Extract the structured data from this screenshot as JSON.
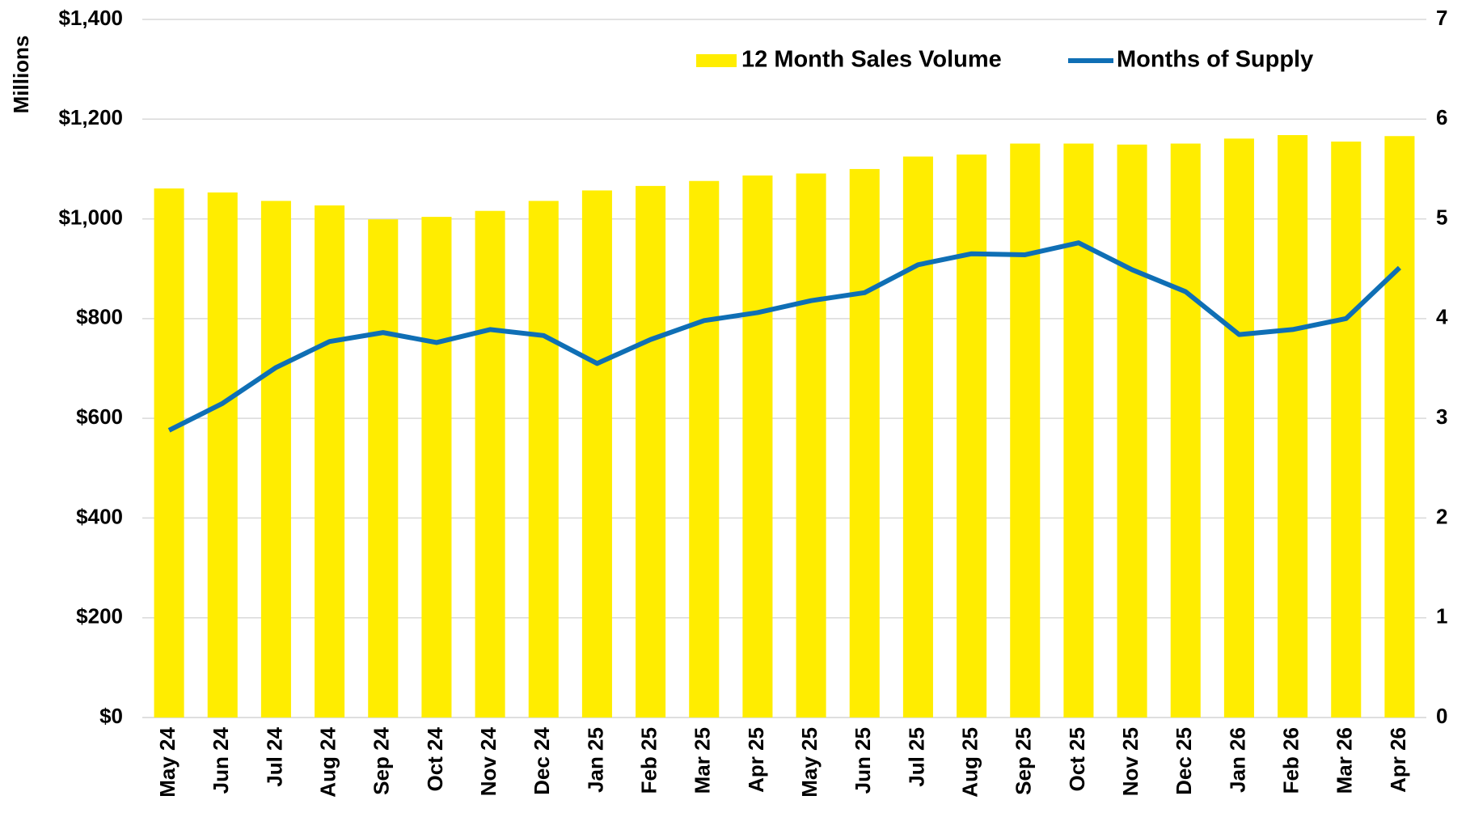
{
  "chart_data": {
    "type": "bar_line",
    "y_label": "Millions",
    "categories": [
      "May 24",
      "Jun 24",
      "Jul 24",
      "Aug 24",
      "Sep 24",
      "Oct 24",
      "Nov 24",
      "Dec 24",
      "Jan 25",
      "Feb 25",
      "Mar 25",
      "Apr 25",
      "May 25",
      "Jun 25",
      "Jul 25",
      "Aug 25",
      "Sep 25",
      "Oct 25",
      "Nov 25",
      "Dec 25",
      "Jan 26",
      "Feb 26",
      "Mar 26",
      "Apr 26"
    ],
    "series": [
      {
        "name": "12 Month Sales Volume",
        "type": "bar",
        "color": "#ffed00",
        "values": [
          1061,
          1053,
          1036,
          1027,
          999,
          1004,
          1016,
          1036,
          1057,
          1066,
          1076,
          1087,
          1091,
          1100,
          1125,
          1129,
          1151,
          1151,
          1149,
          1151,
          1161,
          1168,
          1155,
          1166
        ]
      },
      {
        "name": "Months of Supply",
        "type": "line",
        "color": "#0f6fb5",
        "axis": "y2",
        "values": [
          2.88,
          3.15,
          3.51,
          3.77,
          3.86,
          3.76,
          3.89,
          3.83,
          3.55,
          3.79,
          3.98,
          4.06,
          4.18,
          4.26,
          4.54,
          4.65,
          4.64,
          4.76,
          4.49,
          4.27,
          3.84,
          3.89,
          4.0,
          4.51
        ]
      }
    ],
    "ylim": [
      0,
      1400
    ],
    "yticks": [
      {
        "value": 0,
        "label": "$0"
      },
      {
        "value": 200,
        "label": "$200"
      },
      {
        "value": 400,
        "label": "$400"
      },
      {
        "value": 600,
        "label": "$600"
      },
      {
        "value": 800,
        "label": "$800"
      },
      {
        "value": 1000,
        "label": "$1,000"
      },
      {
        "value": 1200,
        "label": "$1,200"
      },
      {
        "value": 1400,
        "label": "$1,400"
      }
    ],
    "y2lim": [
      0,
      7
    ],
    "y2ticks": [
      0,
      1,
      2,
      3,
      4,
      5,
      6,
      7
    ],
    "grid": true,
    "legend": "top-right"
  }
}
